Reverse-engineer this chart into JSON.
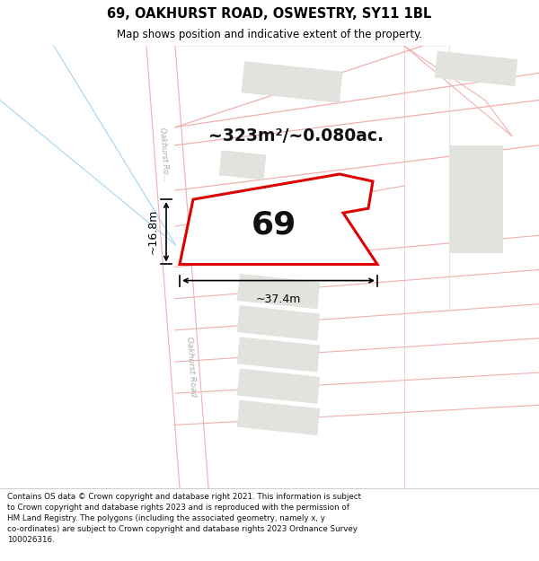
{
  "title": "69, OAKHURST ROAD, OSWESTRY, SY11 1BL",
  "subtitle": "Map shows position and indicative extent of the property.",
  "footer": "Contains OS data © Crown copyright and database right 2021. This information is subject\nto Crown copyright and database rights 2023 and is reproduced with the permission of\nHM Land Registry. The polygons (including the associated geometry, namely x, y\nco-ordinates) are subject to Crown copyright and database rights 2023 Ordnance Survey\n100026316.",
  "area_label": "~323m²/~0.080ac.",
  "width_label": "~37.4m",
  "height_label": "~16.8m",
  "number_label": "69",
  "map_bg": "#f9f9f7",
  "road_stroke": "#f0b0b0",
  "road_fill": "#ffffff",
  "building_color": "#e0e0dc",
  "property_fill": "#ffffff",
  "property_stroke": "#dd0000",
  "dim_color": "#000000",
  "title_color": "#000000",
  "road_label_color": "#aaaaaa",
  "blue_line_color": "#b0d8f0",
  "gray_line_color": "#c8c8c8"
}
